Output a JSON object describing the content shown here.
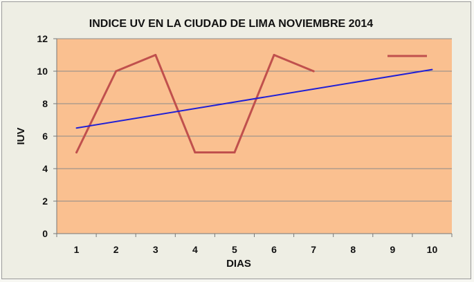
{
  "chart_data": {
    "type": "line",
    "title": "INDICE UV EN LA CIUDAD DE LIMA NOVIEMBRE 2014",
    "xlabel": "DIAS",
    "ylabel": "IUV",
    "x": [
      1,
      2,
      3,
      4,
      5,
      6,
      7,
      8,
      9,
      10
    ],
    "xlim": [
      0.5,
      10.5
    ],
    "ylim": [
      0,
      12
    ],
    "yticks": [
      0,
      2,
      4,
      6,
      8,
      10,
      12
    ],
    "grid": true,
    "legend_position": "top-right",
    "series": [
      {
        "type": "line",
        "color": "#c0504d",
        "points": [
          [
            1,
            5
          ],
          [
            2,
            10
          ],
          [
            3,
            11
          ],
          [
            4,
            5
          ],
          [
            5,
            5
          ],
          [
            6,
            11
          ],
          [
            7,
            10
          ]
        ]
      },
      {
        "type": "trendline",
        "color": "#1f1fd6",
        "points": [
          [
            1,
            6.5
          ],
          [
            10,
            10.1
          ]
        ]
      }
    ],
    "plot_background": "#fac090"
  }
}
